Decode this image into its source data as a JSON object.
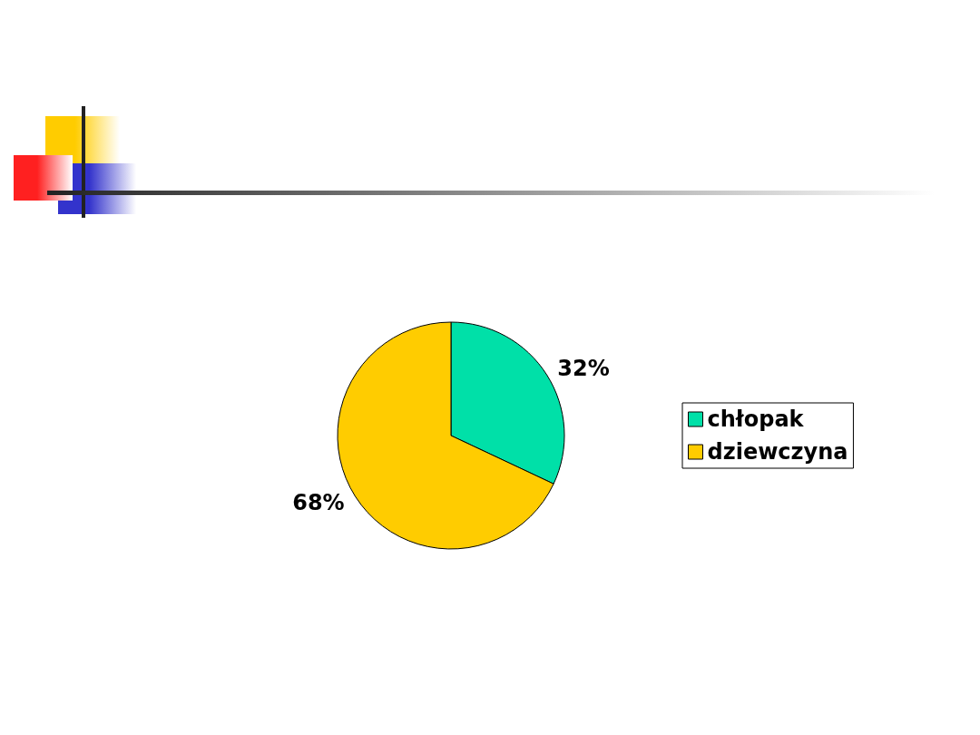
{
  "chart_data": {
    "type": "pie",
    "categories": [
      "chłopak",
      "dziewczyna"
    ],
    "values": [
      32,
      68
    ],
    "colors": [
      "#00e0a8",
      "#ffcc00"
    ],
    "value_labels": [
      "32%",
      "68%"
    ],
    "legend": "right"
  }
}
